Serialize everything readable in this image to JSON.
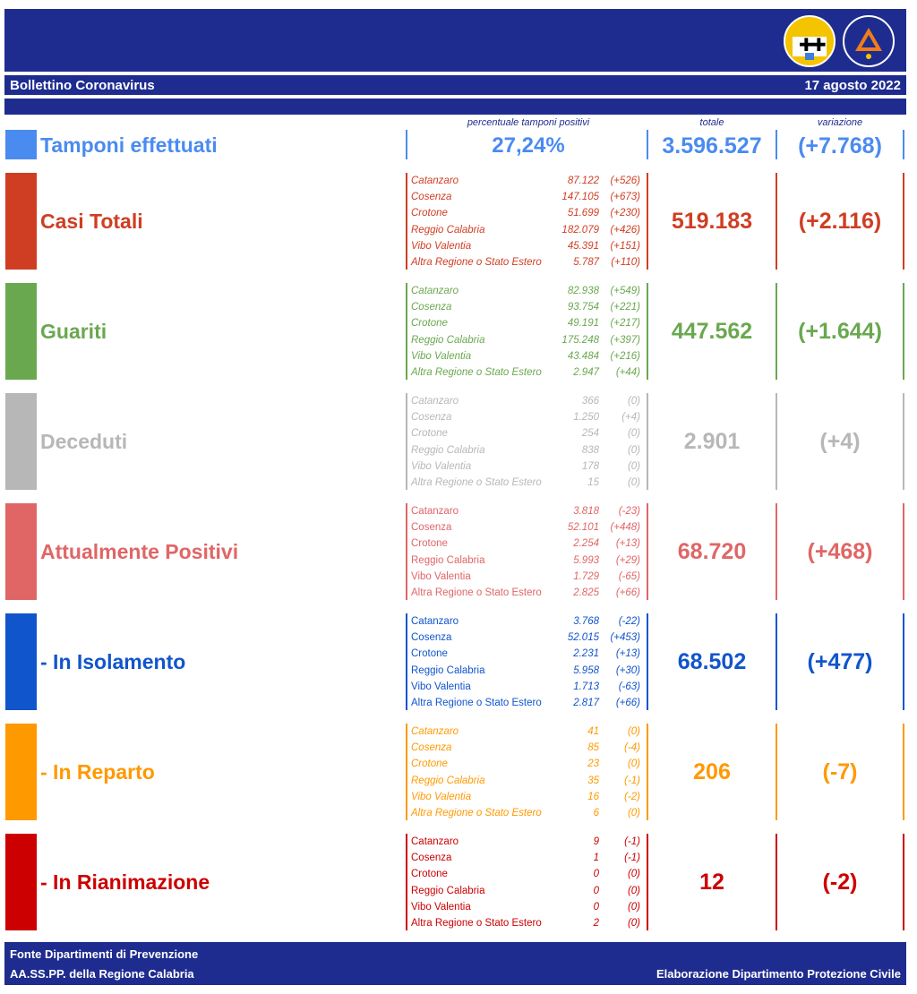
{
  "header": {
    "title": "Bollettino Coronavirus",
    "date": "17 agosto 2022"
  },
  "columns": {
    "pct": "percentuale tamponi positivi",
    "total": "totale",
    "change": "variazione"
  },
  "tamponi": {
    "label": "Tamponi effettuati",
    "pct": "27,24%",
    "total": "3.596.527",
    "change": "(+7.768)",
    "color": "#4a8bf0"
  },
  "sections": [
    {
      "label": "Casi Totali",
      "total": "519.183",
      "change": "(+2.116)",
      "color": "#cf3e23",
      "rows": [
        {
          "name": "Catanzaro",
          "value": "87.122",
          "delta": "(+526)"
        },
        {
          "name": "Cosenza",
          "value": "147.105",
          "delta": "(+673)"
        },
        {
          "name": "Crotone",
          "value": "51.699",
          "delta": "(+230)"
        },
        {
          "name": "Reggio Calabria",
          "value": "182.079",
          "delta": "(+426)"
        },
        {
          "name": "Vibo Valentia",
          "value": "45.391",
          "delta": "(+151)"
        },
        {
          "name": "Altra Regione o Stato Estero",
          "value": "5.787",
          "delta": "(+110)"
        }
      ]
    },
    {
      "label": "Guariti",
      "total": "447.562",
      "change": "(+1.644)",
      "color": "#6aa84f",
      "rows": [
        {
          "name": "Catanzaro",
          "value": "82.938",
          "delta": "(+549)"
        },
        {
          "name": "Cosenza",
          "value": "93.754",
          "delta": "(+221)"
        },
        {
          "name": "Crotone",
          "value": "49.191",
          "delta": "(+217)"
        },
        {
          "name": "Reggio Calabria",
          "value": "175.248",
          "delta": "(+397)"
        },
        {
          "name": "Vibo Valentia",
          "value": "43.484",
          "delta": "(+216)"
        },
        {
          "name": "Altra Regione o Stato Estero",
          "value": "2.947",
          "delta": "(+44)"
        }
      ]
    },
    {
      "label": "Deceduti",
      "total": "2.901",
      "change": "(+4)",
      "color": "#b7b7b7",
      "rows": [
        {
          "name": "Catanzaro",
          "value": "366",
          "delta": "(0)"
        },
        {
          "name": "Cosenza",
          "value": "1.250",
          "delta": "(+4)"
        },
        {
          "name": "Crotone",
          "value": "254",
          "delta": "(0)"
        },
        {
          "name": "Reggio Calabria",
          "value": "838",
          "delta": "(0)"
        },
        {
          "name": "Vibo Valentia",
          "value": "178",
          "delta": "(0)"
        },
        {
          "name": "Altra Regione o Stato Estero",
          "value": "15",
          "delta": "(0)"
        }
      ]
    },
    {
      "label": "Attualmente Positivi",
      "total": "68.720",
      "change": "(+468)",
      "color": "#e06666",
      "rows": [
        {
          "name": "Catanzaro",
          "value": "3.818",
          "delta": "(-23)"
        },
        {
          "name": "Cosenza",
          "value": "52.101",
          "delta": "(+448)"
        },
        {
          "name": "Crotone",
          "value": "2.254",
          "delta": "(+13)"
        },
        {
          "name": "Reggio Calabria",
          "value": "5.993",
          "delta": "(+29)"
        },
        {
          "name": "Vibo Valentia",
          "value": "1.729",
          "delta": "(-65)"
        },
        {
          "name": "Altra Regione o Stato Estero",
          "value": "2.825",
          "delta": "(+66)"
        }
      ]
    },
    {
      "label": " - In Isolamento",
      "total": "68.502",
      "change": "(+477)",
      "color": "#1155cc",
      "rows": [
        {
          "name": "Catanzaro",
          "value": "3.768",
          "delta": "(-22)"
        },
        {
          "name": "Cosenza",
          "value": "52.015",
          "delta": "(+453)"
        },
        {
          "name": "Crotone",
          "value": "2.231",
          "delta": "(+13)"
        },
        {
          "name": "Reggio Calabria",
          "value": "5.958",
          "delta": "(+30)"
        },
        {
          "name": "Vibo Valentia",
          "value": "1.713",
          "delta": "(-63)"
        },
        {
          "name": "Altra Regione o Stato Estero",
          "value": "2.817",
          "delta": "(+66)"
        }
      ]
    },
    {
      "label": " - In Reparto",
      "total": "206",
      "change": "(-7)",
      "color": "#ff9900",
      "rows": [
        {
          "name": "Catanzaro",
          "value": "41",
          "delta": "(0)"
        },
        {
          "name": "Cosenza",
          "value": "85",
          "delta": "(-4)"
        },
        {
          "name": "Crotone",
          "value": "23",
          "delta": "(0)"
        },
        {
          "name": "Reggio Calabria",
          "value": "35",
          "delta": "(-1)"
        },
        {
          "name": "Vibo Valentia",
          "value": "16",
          "delta": "(-2)"
        },
        {
          "name": "Altra Regione o Stato Estero",
          "value": "6",
          "delta": "(0)"
        }
      ]
    },
    {
      "label": " - In Rianimazione",
      "total": "12",
      "change": "(-2)",
      "color": "#cc0000",
      "rows": [
        {
          "name": "Catanzaro",
          "value": "9",
          "delta": "(-1)"
        },
        {
          "name": "Cosenza",
          "value": "1",
          "delta": "(-1)"
        },
        {
          "name": "Crotone",
          "value": "0",
          "delta": "(0)"
        },
        {
          "name": "Reggio Calabria",
          "value": "0",
          "delta": "(0)"
        },
        {
          "name": "Vibo Valentia",
          "value": "0",
          "delta": "(0)"
        },
        {
          "name": "Altra Regione o Stato Estero",
          "value": "2",
          "delta": "(0)"
        }
      ]
    }
  ],
  "footer": {
    "line1": "Fonte Dipartimenti di Prevenzione",
    "line2": "AA.SS.PP.  della Regione Calabria",
    "right": "Elaborazione Dipartimento Protezione Civile"
  },
  "logos": [
    "region-crest-icon",
    "civil-protection-logo-icon"
  ]
}
